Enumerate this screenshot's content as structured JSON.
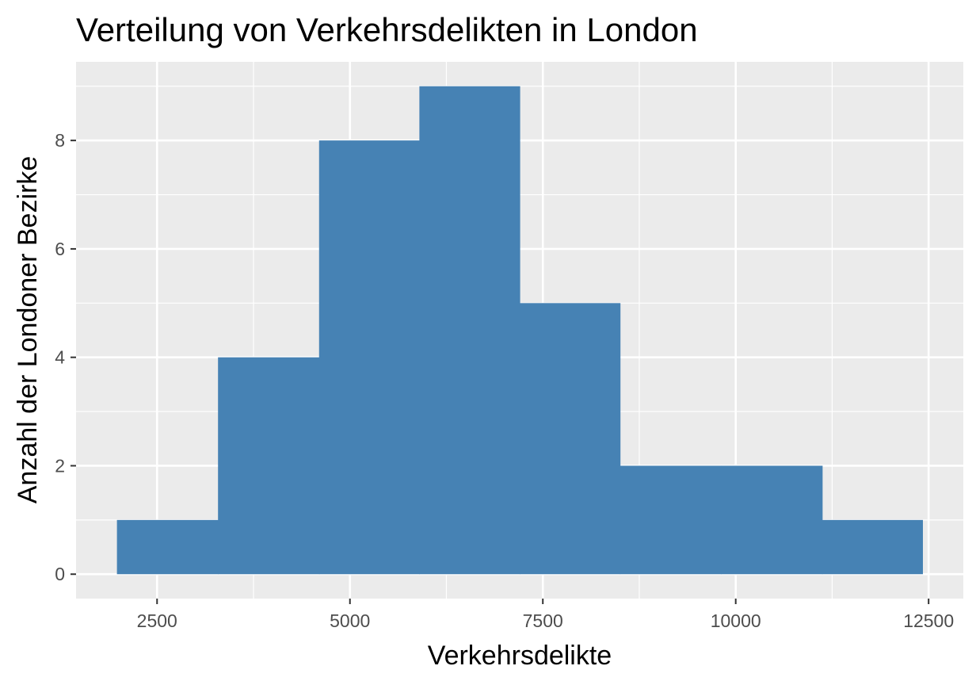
{
  "chart_data": {
    "type": "bar",
    "title": "Verteilung von Verkehrsdelikten in London",
    "xlabel": "Verkehrsdelikte",
    "ylabel": "Anzahl der Londoner Bezirke",
    "xlim": [
      1450,
      12950
    ],
    "ylim": [
      -0.45,
      9.45
    ],
    "x_ticks": [
      2500,
      5000,
      7500,
      10000,
      12500
    ],
    "x_tick_labels": [
      "2500",
      "5000",
      "7500",
      "10000",
      "12500"
    ],
    "y_ticks": [
      0,
      2,
      4,
      6,
      8
    ],
    "y_tick_labels": [
      "0",
      "2",
      "4",
      "6",
      "8"
    ],
    "bins": [
      {
        "x0": 1980,
        "x1": 3290,
        "count": 1
      },
      {
        "x0": 3290,
        "x1": 4600,
        "count": 4
      },
      {
        "x0": 4600,
        "x1": 5900,
        "count": 8
      },
      {
        "x0": 5900,
        "x1": 7200,
        "count": 9
      },
      {
        "x0": 7200,
        "x1": 8500,
        "count": 5
      },
      {
        "x0": 8500,
        "x1": 9810,
        "count": 2
      },
      {
        "x0": 9810,
        "x1": 11120,
        "count": 2
      },
      {
        "x0": 11120,
        "x1": 12420,
        "count": 1
      }
    ],
    "grid": true,
    "colors": {
      "bar": "#4682b4",
      "panel": "#ebebeb",
      "grid": "#ffffff",
      "tick_text": "#4d4d4d",
      "tick_mark": "#333333"
    }
  }
}
